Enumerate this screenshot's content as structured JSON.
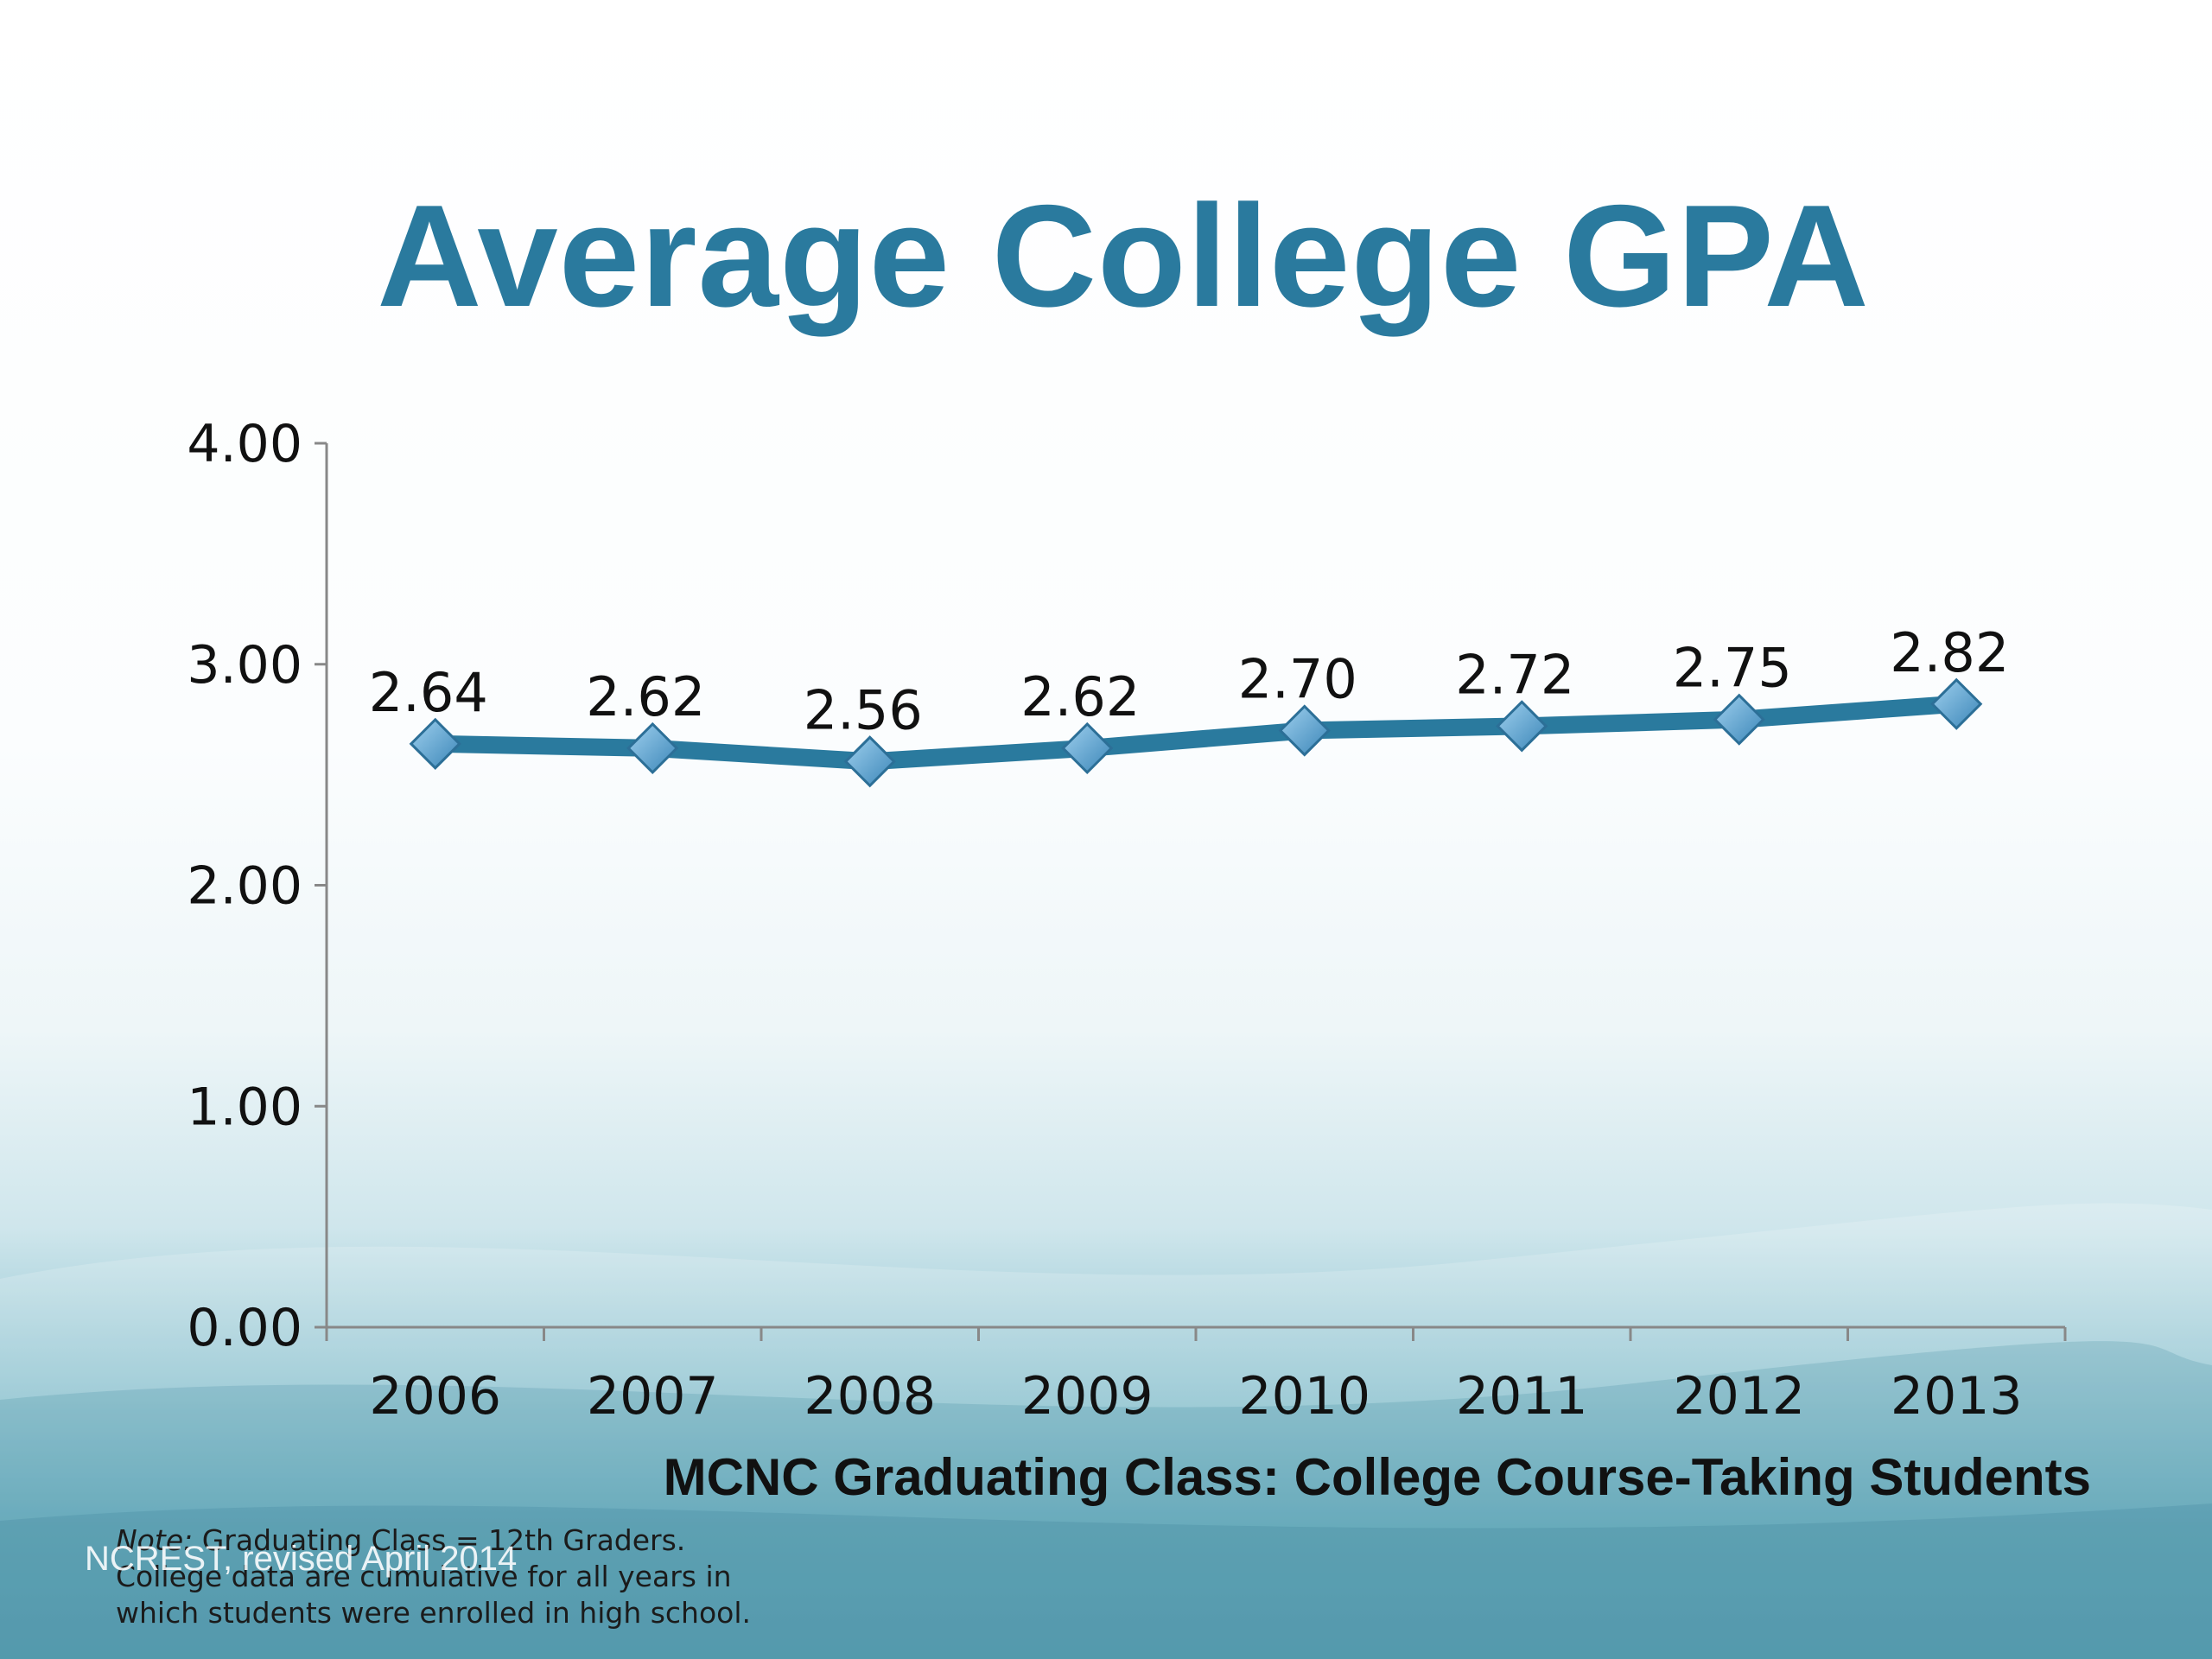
{
  "slide": {
    "title": "Average College GPA",
    "note_label": "Note:",
    "note_line1": " Graduating Class = 12th Graders.",
    "note_line2": "College data are cumulative for all years in",
    "note_line3": "which students were enrolled in high school.",
    "credit": "NCREST, revised April 2014"
  },
  "colors": {
    "title": "#2a7a9e",
    "line": "#2a7a9e",
    "marker": "#5aa0cc",
    "axis": "#888888"
  },
  "chart_data": {
    "type": "line",
    "title": "Average College GPA",
    "xlabel": "MCNC Graduating Class: College Course-Taking Students",
    "ylabel": "",
    "categories": [
      "2006",
      "2007",
      "2008",
      "2009",
      "2010",
      "2011",
      "2012",
      "2013"
    ],
    "values": [
      2.64,
      2.62,
      2.56,
      2.62,
      2.7,
      2.72,
      2.75,
      2.82
    ],
    "data_labels": [
      "2.64",
      "2.62",
      "2.56",
      "2.62",
      "2.70",
      "2.72",
      "2.75",
      "2.82"
    ],
    "yticks": [
      "0.00",
      "1.00",
      "2.00",
      "3.00",
      "4.00"
    ],
    "ylim": [
      0,
      4
    ],
    "grid": false,
    "legend": "none",
    "marker": "diamond"
  }
}
